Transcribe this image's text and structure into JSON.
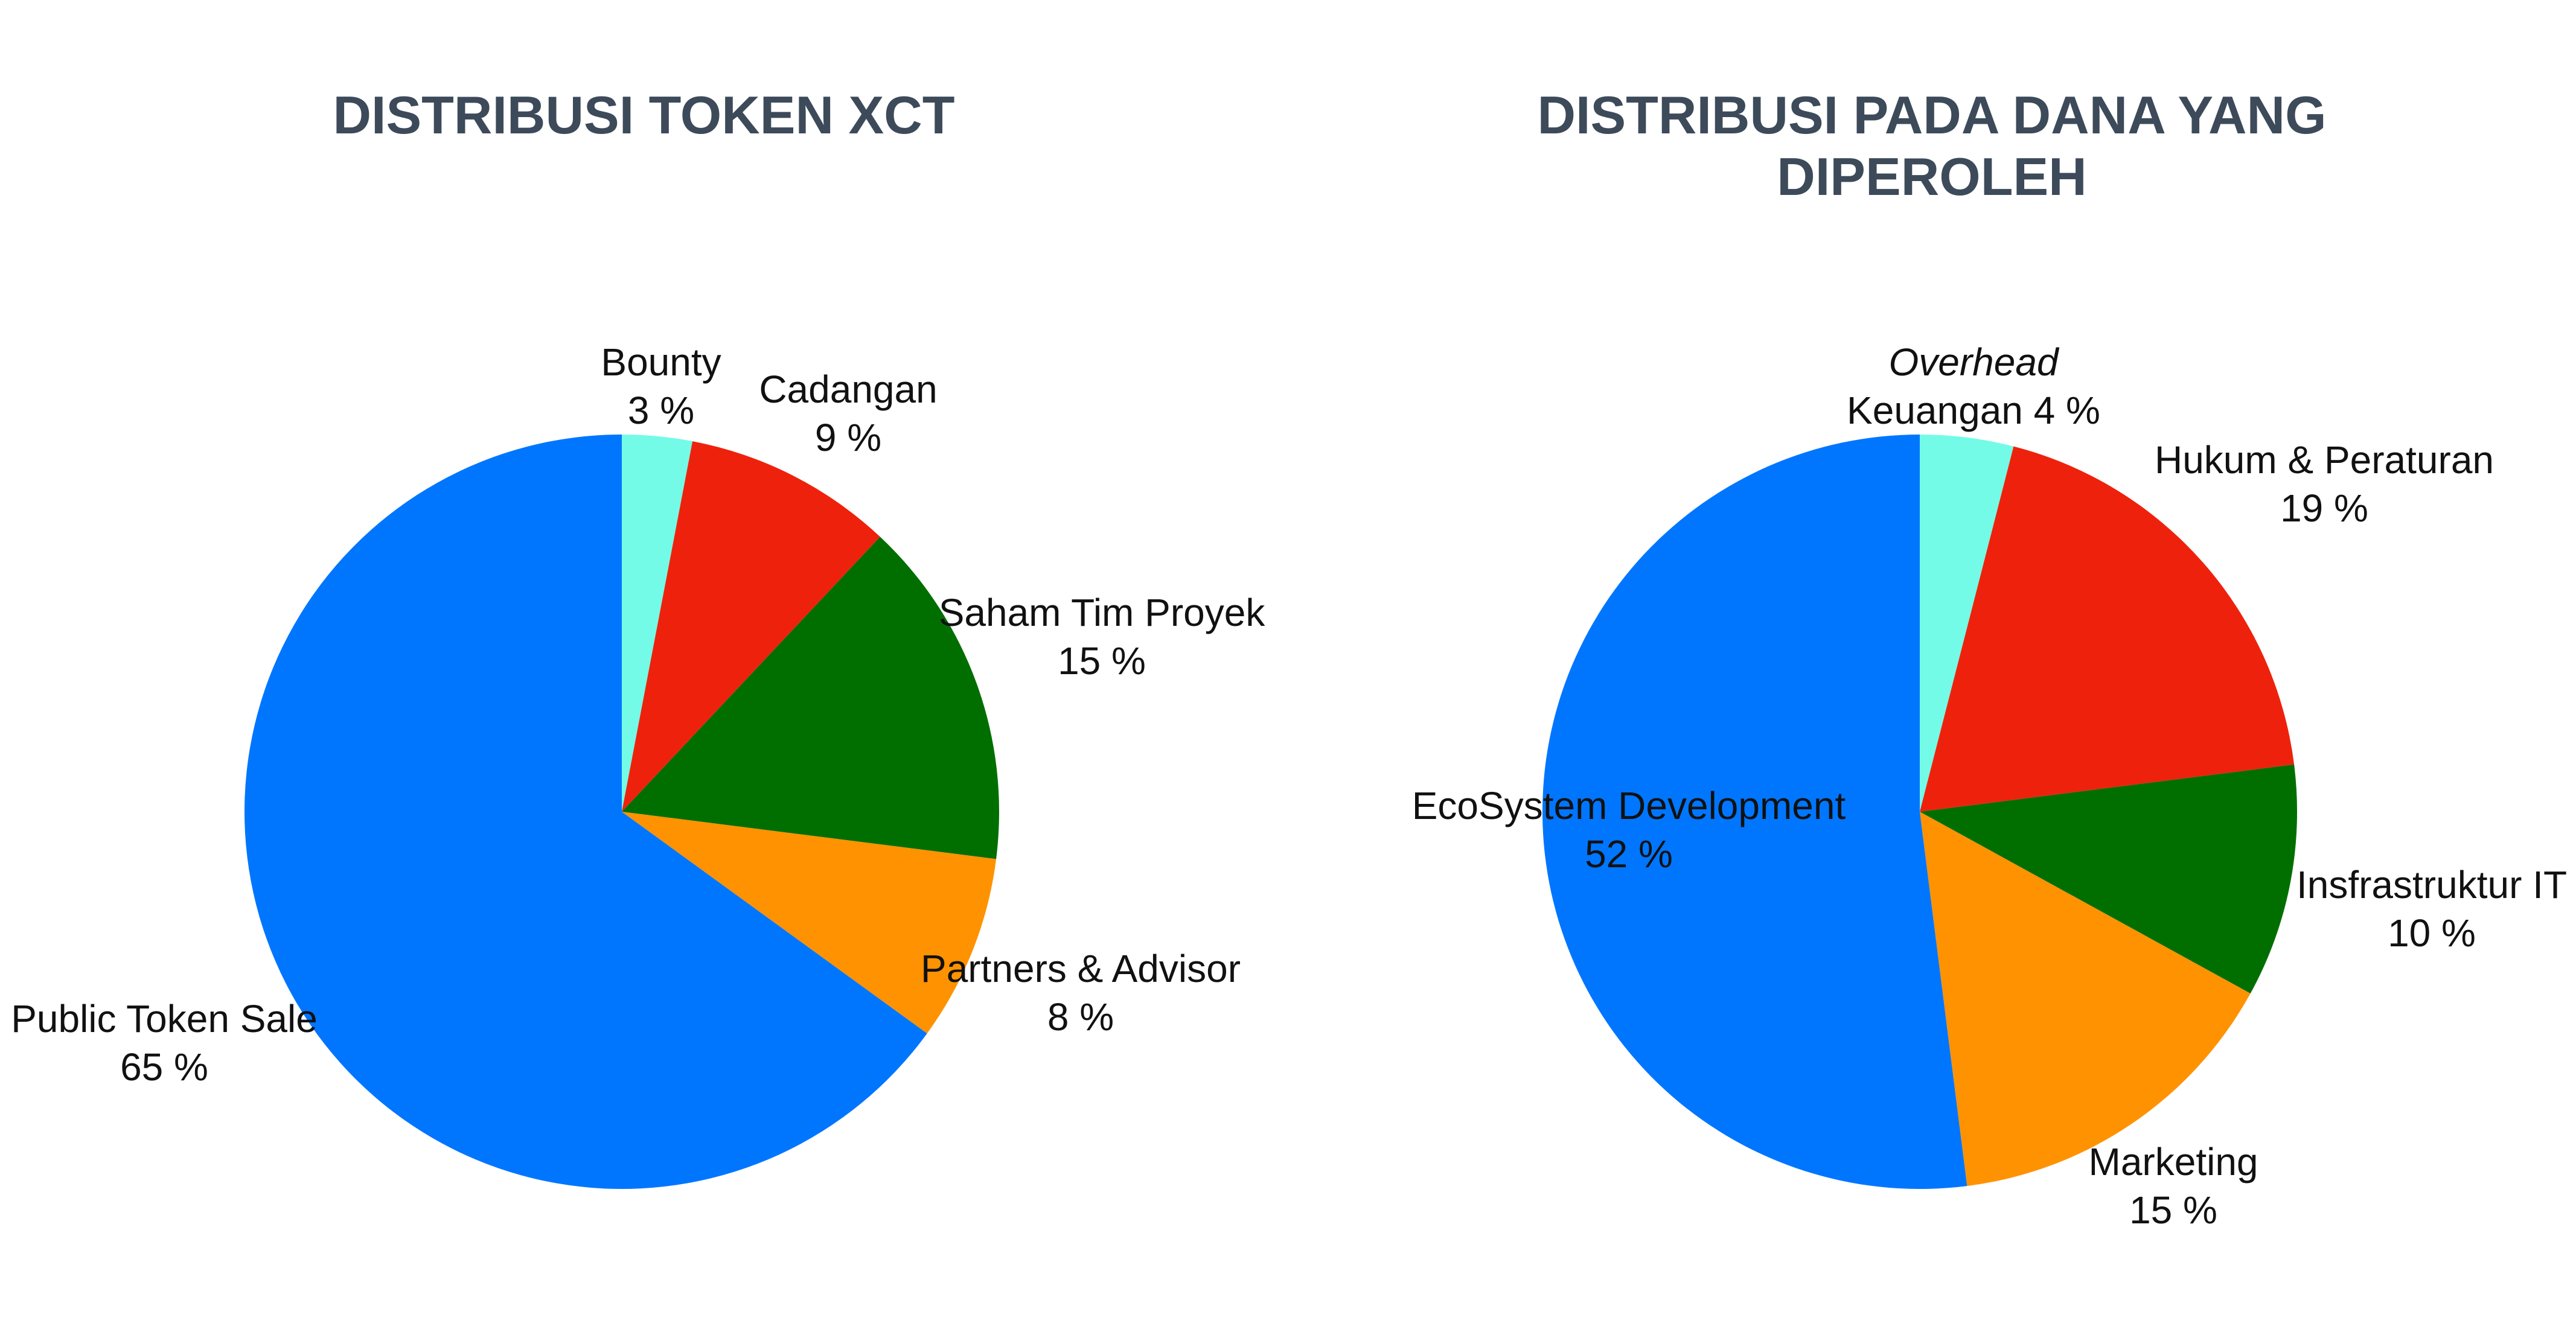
{
  "chart_data": [
    {
      "type": "pie",
      "title": "DISTRIBUSI TOKEN XCT",
      "slices": [
        {
          "label": "Bounty",
          "value": 3,
          "value_text": "3 %",
          "color": "#74fbe7"
        },
        {
          "label": "Cadangan",
          "value": 9,
          "value_text": "9 %",
          "color": "#ee220c"
        },
        {
          "label": "Saham Tim Proyek",
          "value": 15,
          "value_text": "15 %",
          "color": "#016f00"
        },
        {
          "label": "Partners & Advisor",
          "value": 8,
          "value_text": "8 %",
          "color": "#ff9201"
        },
        {
          "label": "Public Token Sale",
          "value": 65,
          "value_text": "65 %",
          "color": "#0076ff"
        }
      ]
    },
    {
      "type": "pie",
      "title": "DISTRIBUSI PADA DANA YANG DIPEROLEH",
      "title_lines": [
        "DISTRIBUSI PADA DANA YANG",
        "DIPEROLEH"
      ],
      "slices": [
        {
          "label": "Overhead Keuangan",
          "label_line1": "Overhead",
          "label_line2": "Keuangan 4 %",
          "value": 4,
          "value_text": "4 %",
          "color": "#74fbe7"
        },
        {
          "label": "Hukum & Peraturan",
          "value": 19,
          "value_text": "19 %",
          "color": "#ee220c"
        },
        {
          "label": "Insfrastruktur IT",
          "value": 10,
          "value_text": "10 %",
          "color": "#016f00"
        },
        {
          "label": "Marketing",
          "value": 15,
          "value_text": "15 %",
          "color": "#ff9201"
        },
        {
          "label": "EcoSystem Development",
          "value": 52,
          "value_text": "52 %",
          "color": "#0076ff"
        }
      ]
    }
  ]
}
